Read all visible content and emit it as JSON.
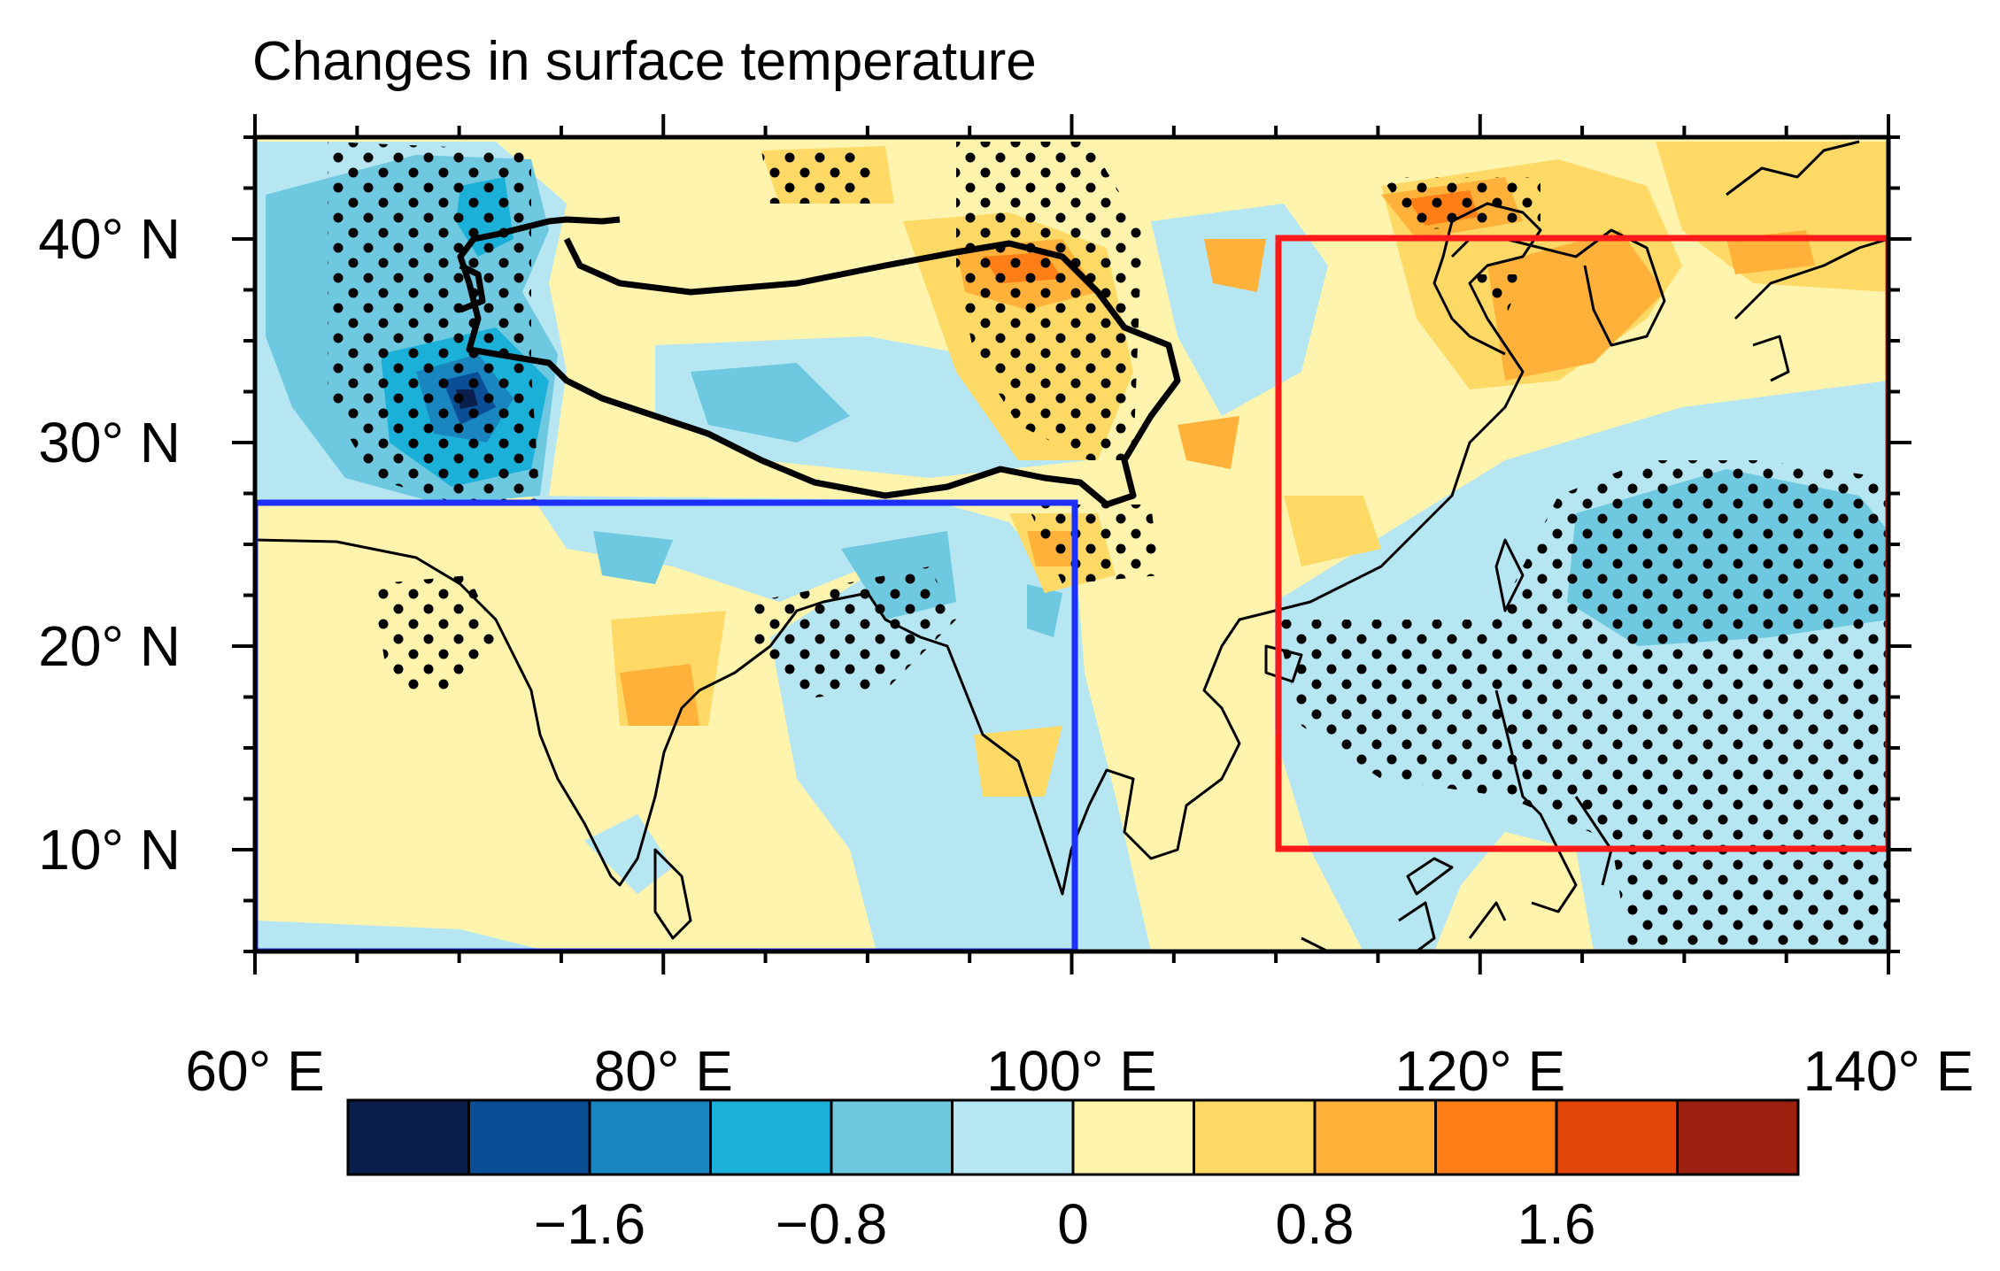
{
  "title": "Changes in surface temperature",
  "map": {
    "lon_range": [
      60,
      140
    ],
    "lat_range": [
      5,
      45
    ],
    "lon_ticks": [
      60,
      80,
      100,
      120,
      140
    ],
    "lon_tick_labels": [
      "60° E",
      "80° E",
      "100° E",
      "120° E",
      "140° E"
    ],
    "lat_ticks": [
      10,
      20,
      30,
      40
    ],
    "lat_tick_labels": [
      "10° N",
      "20° N",
      "30° N",
      "40° N"
    ],
    "regions": [
      {
        "name": "blue-box",
        "color": "#1b2fff",
        "lon": [
          60,
          100
        ],
        "lat": [
          5,
          27
        ]
      },
      {
        "name": "red-box",
        "color": "#ff1a1a",
        "lon": [
          110,
          140
        ],
        "lat": [
          10,
          40
        ]
      }
    ]
  },
  "colorbar": {
    "colors": [
      "#0b1f4d",
      "#0a4e96",
      "#1a86c0",
      "#1bb0d8",
      "#6ec8e0",
      "#b5e6f2",
      "#fff4ad",
      "#ffd966",
      "#ffb13a",
      "#ff7e15",
      "#e2440a",
      "#9c1f0f"
    ],
    "label_values": [
      "−1.6",
      "−0.8",
      "0",
      "0.8",
      "1.6"
    ]
  }
}
